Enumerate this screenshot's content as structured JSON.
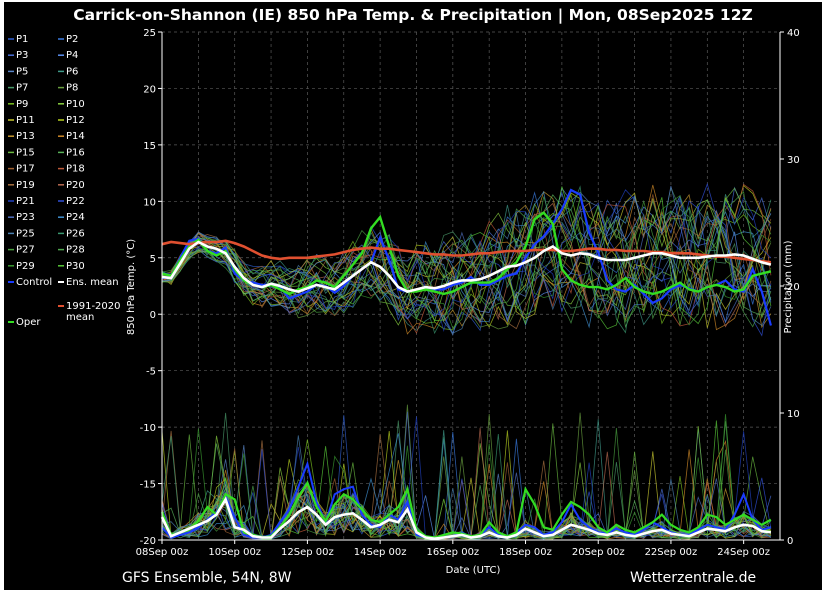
{
  "header": {
    "title": "Carrick-on-Shannon  (IE)  850 hPa Temp. & Precipitation | Mon, 08Sep2025 12Z"
  },
  "footer": {
    "model": "GFS Ensemble, 54N, 8W",
    "site": "Wetterzentrale.de"
  },
  "chart_data": {
    "type": "line",
    "xlabel": "Date (UTC)",
    "ylabel": "850 hPa Temp. (°C)",
    "y2label": "Precipitation (mm)",
    "xlim": [
      "08Sep 00z",
      "25Sep 00z"
    ],
    "x_ticks": [
      "08Sep 00z",
      "10Sep 00z",
      "12Sep 00z",
      "14Sep 00z",
      "16Sep 00z",
      "18Sep 00z",
      "20Sep 00z",
      "22Sep 00z",
      "24Sep 00z"
    ],
    "ylim": [
      -20,
      25
    ],
    "y_ticks": [
      25,
      20,
      15,
      10,
      5,
      0,
      -5,
      -10,
      -15,
      -20
    ],
    "y2lim": [
      0,
      40
    ],
    "y2_ticks": [
      40,
      30,
      20,
      10,
      0
    ],
    "grid": true,
    "legend": {
      "placement": "left",
      "members": [
        "P1",
        "P2",
        "P3",
        "P4",
        "P5",
        "P6",
        "P7",
        "P8",
        "P9",
        "P10",
        "P11",
        "P12",
        "P13",
        "P14",
        "P15",
        "P16",
        "P17",
        "P18",
        "P19",
        "P20",
        "P21",
        "P22",
        "P23",
        "P24",
        "P25",
        "P26",
        "P27",
        "P28",
        "P29",
        "P30"
      ],
      "member_colors": [
        "#2f5fd0",
        "#3a7be0",
        "#4a6fd8",
        "#5b8ff0",
        "#5a86c8",
        "#3f9a8a",
        "#4a9a6a",
        "#6aa040",
        "#7ac020",
        "#8ad040",
        "#c8c830",
        "#b8d020",
        "#c89a30",
        "#d08a28",
        "#6ab840",
        "#58b058",
        "#a06030",
        "#c05a3a",
        "#a87040",
        "#b86a50",
        "#2040c0",
        "#3050d8",
        "#5070c0",
        "#4090d0",
        "#4a80b0",
        "#3a9870",
        "#4aa040",
        "#50a850",
        "#3a9a30",
        "#58c838"
      ],
      "control_label": "Control",
      "mean_label": "Ens. mean",
      "clim_label": "1991-2020 mean",
      "oper_label": "Oper"
    },
    "series_colors": {
      "control": "#1a3cff",
      "ens_mean": "#ffffff",
      "clim": "#e05030",
      "oper": "#33dd22"
    },
    "x_days": [
      0,
      0.25,
      0.5,
      0.75,
      1,
      1.25,
      1.5,
      1.75,
      2,
      2.25,
      2.5,
      2.75,
      3,
      3.25,
      3.5,
      3.75,
      4,
      4.25,
      4.5,
      4.75,
      5,
      5.25,
      5.5,
      5.75,
      6,
      6.25,
      6.5,
      6.75,
      7,
      7.25,
      7.5,
      7.75,
      8,
      8.25,
      8.5,
      8.75,
      9,
      9.25,
      9.5,
      9.75,
      10,
      10.25,
      10.5,
      10.75,
      11,
      11.25,
      11.5,
      11.75,
      12,
      12.25,
      12.5,
      12.75,
      13,
      13.25,
      13.5,
      13.75,
      14,
      14.25,
      14.5,
      14.75,
      15,
      15.25,
      15.5,
      15.75,
      16,
      16.25,
      16.5,
      16.75
    ],
    "temp_ens_mean": [
      3.3,
      3.2,
      4.5,
      5.8,
      6.4,
      6.0,
      5.8,
      5.4,
      4.2,
      3.2,
      2.6,
      2.4,
      2.7,
      2.5,
      2.2,
      2.0,
      2.3,
      2.6,
      2.4,
      2.2,
      2.8,
      3.4,
      4.0,
      4.6,
      4.2,
      3.4,
      2.4,
      2.0,
      2.2,
      2.4,
      2.3,
      2.5,
      2.8,
      3.0,
      3.0,
      3.1,
      3.4,
      3.8,
      4.2,
      4.3,
      4.6,
      5.0,
      5.6,
      6.0,
      5.4,
      5.2,
      5.4,
      5.3,
      5.0,
      4.8,
      4.8,
      4.8,
      5.0,
      5.2,
      5.4,
      5.4,
      5.2,
      5.0,
      5.0,
      5.0,
      5.1,
      5.2,
      5.2,
      5.3,
      5.2,
      4.9,
      4.6,
      4.4
    ],
    "temp_clim_mean": [
      6.2,
      6.4,
      6.3,
      6.2,
      6.3,
      6.4,
      6.4,
      6.5,
      6.3,
      6.0,
      5.6,
      5.2,
      5.0,
      4.9,
      5.0,
      5.0,
      5.0,
      5.1,
      5.2,
      5.3,
      5.5,
      5.7,
      5.8,
      5.9,
      5.8,
      5.8,
      5.7,
      5.6,
      5.5,
      5.4,
      5.3,
      5.3,
      5.2,
      5.2,
      5.3,
      5.4,
      5.4,
      5.5,
      5.6,
      5.6,
      5.6,
      5.7,
      5.7,
      5.7,
      5.6,
      5.6,
      5.7,
      5.8,
      5.8,
      5.7,
      5.7,
      5.6,
      5.6,
      5.6,
      5.5,
      5.5,
      5.4,
      5.4,
      5.4,
      5.3,
      5.2,
      5.1,
      5.1,
      5.0,
      4.9,
      4.8,
      4.7,
      4.6
    ],
    "temp_control": [
      3.2,
      3.3,
      5.0,
      6.5,
      6.7,
      5.6,
      5.4,
      5.9,
      3.6,
      3.0,
      2.8,
      2.6,
      2.6,
      2.4,
      1.4,
      1.7,
      2.0,
      2.6,
      2.5,
      1.9,
      2.5,
      3.4,
      4.0,
      4.6,
      6.8,
      4.8,
      2.2,
      2.0,
      2.1,
      2.4,
      2.2,
      2.2,
      2.6,
      2.8,
      3.3,
      2.6,
      2.6,
      3.0,
      3.4,
      3.6,
      5.0,
      6.2,
      6.9,
      8.0,
      9.3,
      11.0,
      10.6,
      7.2,
      5.5,
      3.0,
      2.2,
      2.0,
      2.6,
      1.8,
      1.0,
      1.4,
      2.2,
      2.6,
      2.3,
      2.0,
      2.4,
      2.6,
      3.0,
      2.2,
      2.0,
      4.0,
      2.0,
      -1.0
    ],
    "temp_oper": [
      3.6,
      3.4,
      4.8,
      6.0,
      6.6,
      5.6,
      5.2,
      5.6,
      4.0,
      3.0,
      2.6,
      2.4,
      2.6,
      2.2,
      1.8,
      2.2,
      2.4,
      3.0,
      2.8,
      2.4,
      3.4,
      4.4,
      5.4,
      7.6,
      8.6,
      6.0,
      3.4,
      2.0,
      2.0,
      2.2,
      2.0,
      1.8,
      2.0,
      2.4,
      2.8,
      2.8,
      2.8,
      3.2,
      4.0,
      4.6,
      6.0,
      8.4,
      9.0,
      8.0,
      4.0,
      3.0,
      2.6,
      2.4,
      2.4,
      2.2,
      2.6,
      3.2,
      2.4,
      2.0,
      1.8,
      2.0,
      2.4,
      2.8,
      2.2,
      2.0,
      2.4,
      2.6,
      2.4,
      2.0,
      2.2,
      3.4,
      3.6,
      3.8
    ],
    "precip_ens_mean": [
      1.8,
      0.3,
      0.6,
      0.9,
      1.2,
      1.5,
      2.0,
      3.2,
      1.0,
      0.8,
      0.3,
      0.2,
      0.2,
      0.9,
      1.5,
      2.2,
      2.6,
      2.0,
      1.2,
      1.8,
      2.0,
      2.1,
      1.6,
      1.0,
      1.2,
      1.6,
      1.4,
      2.4,
      0.6,
      0.2,
      0.1,
      0.2,
      0.3,
      0.4,
      0.2,
      0.3,
      0.6,
      0.3,
      0.2,
      0.4,
      0.9,
      0.6,
      0.3,
      0.4,
      0.8,
      1.2,
      1.0,
      0.8,
      0.5,
      0.4,
      0.6,
      0.4,
      0.3,
      0.5,
      0.7,
      0.8,
      0.5,
      0.4,
      0.3,
      0.6,
      0.9,
      0.8,
      0.7,
      1.0,
      1.2,
      1.1,
      0.7,
      0.6
    ],
    "precip_oper": [
      2.2,
      0.4,
      0.6,
      0.8,
      1.5,
      2.6,
      2.0,
      3.6,
      3.2,
      0.6,
      0.4,
      0.2,
      0.3,
      1.0,
      2.0,
      3.4,
      4.5,
      2.6,
      1.5,
      2.8,
      3.6,
      3.2,
      2.4,
      1.6,
      1.4,
      2.0,
      2.6,
      4.0,
      0.8,
      0.3,
      0.2,
      0.4,
      0.6,
      0.5,
      0.3,
      0.4,
      1.4,
      0.6,
      0.3,
      0.6,
      4.0,
      2.8,
      1.0,
      0.8,
      2.0,
      3.0,
      2.6,
      2.0,
      1.0,
      0.6,
      1.2,
      0.8,
      0.6,
      1.0,
      1.4,
      2.0,
      1.2,
      0.8,
      0.6,
      1.0,
      2.0,
      1.8,
      1.2,
      1.6,
      2.0,
      1.6,
      1.2,
      1.6
    ],
    "precip_control": [
      1.0,
      0.2,
      0.4,
      0.6,
      1.0,
      1.6,
      2.2,
      3.4,
      1.8,
      0.4,
      0.2,
      0.2,
      0.4,
      1.4,
      2.4,
      4.2,
      6.0,
      3.0,
      1.4,
      3.6,
      4.0,
      4.2,
      2.0,
      1.2,
      1.0,
      2.0,
      1.6,
      3.0,
      0.4,
      0.2,
      0.1,
      0.2,
      0.3,
      0.6,
      0.2,
      0.4,
      1.0,
      0.4,
      0.2,
      0.6,
      1.2,
      1.0,
      0.4,
      0.6,
      1.4,
      2.8,
      1.6,
      1.0,
      0.6,
      0.5,
      0.9,
      0.6,
      0.4,
      0.8,
      1.4,
      1.0,
      0.6,
      0.4,
      0.4,
      0.8,
      1.2,
      1.0,
      0.8,
      2.0,
      3.6,
      1.6,
      0.8,
      1.0
    ]
  }
}
